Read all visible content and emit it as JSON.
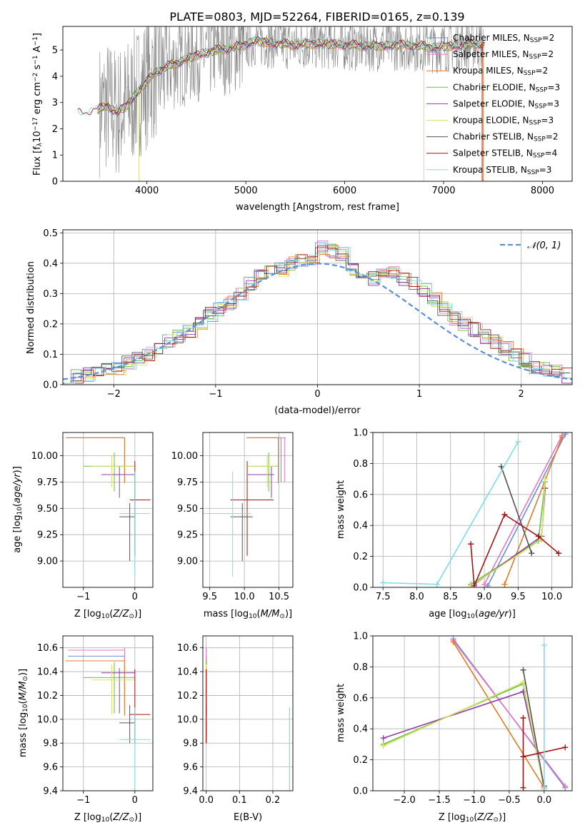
{
  "title": "PLATE=0803, MJD=52264, FIBERID=0165, z=0.139",
  "colors": {
    "Chabrier MILES": "#6a8fd6",
    "Salpeter MILES": "#e377c2",
    "Kroupa MILES": "#e07b2a",
    "Chabrier ELODIE": "#6bbf3f",
    "Salpeter ELODIE": "#8e3fa8",
    "Kroupa ELODIE": "#d8e06a",
    "Chabrier STELIB": "#555555",
    "Salpeter STELIB": "#a31515",
    "Kroupa STELIB": "#7ddde3",
    "data": "#888888",
    "normal": "#5b8fd6"
  },
  "chart_data": [
    {
      "type": "line",
      "panel": "spectrum",
      "title": "PLATE=0803, MJD=52264, FIBERID=0165, z=0.139",
      "xlabel": "wavelength [Angstrom, rest frame]",
      "ylabel_main": "Flux [f",
      "ylabel_sub": "λ",
      "ylabel_rest": "10",
      "ylabel_exp": "−17",
      "ylabel_units": " erg cm",
      "ylabel_units_exp": "−2",
      "ylabel_units2": " s",
      "ylabel_units2_exp": "−1",
      "ylabel_units3": " A",
      "ylabel_units3_exp": "−1",
      "ylabel_close": "]",
      "xlim": [
        3150,
        8300
      ],
      "ylim": [
        0,
        5.9
      ],
      "xticks": [
        "4000",
        "5000",
        "6000",
        "7000",
        "8000"
      ],
      "yticks": [
        "0",
        "1",
        "2",
        "3",
        "4",
        "5"
      ],
      "legend_position": "top-right",
      "legend": [
        {
          "label": "Chabrier MILES, N",
          "sub": "SSP",
          "tail": "=2"
        },
        {
          "label": "Salpeter MILES, N",
          "sub": "SSP",
          "tail": "=2"
        },
        {
          "label": "Kroupa MILES, N",
          "sub": "SSP",
          "tail": "=2"
        },
        {
          "label": "Chabrier ELODIE, N",
          "sub": "SSP",
          "tail": "=3"
        },
        {
          "label": "Salpeter ELODIE, N",
          "sub": "SSP",
          "tail": "=3"
        },
        {
          "label": "Kroupa ELODIE, N",
          "sub": "SSP",
          "tail": "=3"
        },
        {
          "label": "Chabrier STELIB, N",
          "sub": "SSP",
          "tail": "=2"
        },
        {
          "label": "Salpeter STELIB, N",
          "sub": "SSP",
          "tail": "=4"
        },
        {
          "label": "Kroupa STELIB, N",
          "sub": "SSP",
          "tail": "=3"
        }
      ],
      "continuum": [
        [
          3300,
          2.6
        ],
        [
          3500,
          2.7
        ],
        [
          3600,
          2.9
        ],
        [
          3700,
          2.6
        ],
        [
          3800,
          2.9
        ],
        [
          3950,
          3.6
        ],
        [
          4100,
          4.2
        ],
        [
          4300,
          4.5
        ],
        [
          4500,
          4.8
        ],
        [
          4700,
          5.0
        ],
        [
          4900,
          5.1
        ],
        [
          5100,
          5.35
        ],
        [
          5300,
          5.25
        ],
        [
          5500,
          5.2
        ],
        [
          5700,
          5.25
        ],
        [
          6000,
          5.2
        ],
        [
          6300,
          5.15
        ],
        [
          6600,
          5.2
        ],
        [
          6900,
          5.1
        ],
        [
          7200,
          5.2
        ],
        [
          7400,
          5.25
        ]
      ]
    },
    {
      "type": "histogram",
      "panel": "residuals",
      "xlabel": "(data-model)/error",
      "ylabel": "Normed distribution",
      "xlim": [
        -2.5,
        2.5
      ],
      "ylim": [
        0,
        0.51
      ],
      "xticks": [
        "−2",
        "−1",
        "0",
        "1",
        "2"
      ],
      "yticks": [
        "0.0",
        "0.1",
        "0.2",
        "0.3",
        "0.4",
        "0.5"
      ],
      "legend": "𝒩(0, 1)",
      "legend_position": "top-right",
      "bin_width": 0.1,
      "bin_start": -2.5,
      "base": [
        0.02,
        0.025,
        0.03,
        0.035,
        0.045,
        0.055,
        0.07,
        0.085,
        0.1,
        0.12,
        0.14,
        0.16,
        0.18,
        0.2,
        0.23,
        0.25,
        0.27,
        0.3,
        0.33,
        0.36,
        0.37,
        0.38,
        0.4,
        0.41,
        0.42,
        0.45,
        0.44,
        0.43,
        0.38,
        0.37,
        0.35,
        0.36,
        0.37,
        0.35,
        0.33,
        0.31,
        0.28,
        0.25,
        0.22,
        0.2,
        0.18,
        0.16,
        0.14,
        0.12,
        0.1,
        0.08,
        0.06,
        0.05,
        0.04,
        0.03
      ]
    },
    {
      "type": "scatter",
      "panel": "age_vs_Z",
      "xlabel": "Z [log",
      "xlabel_sub": "10",
      "xlabel_tail": "(Z/Z",
      "xlabel_sun": "⊙",
      "xlabel_close": ")]",
      "ylabel": "age  [log",
      "ylabel_sub": "10",
      "ylabel_tail": "(age/yr)]",
      "xlim": [
        -1.4,
        0.35
      ],
      "ylim": [
        8.75,
        10.22
      ],
      "xticks": [
        "−1",
        "0"
      ],
      "yticks": [
        "9.00",
        "9.25",
        "9.50",
        "9.75",
        "10.00"
      ]
    },
    {
      "type": "scatter",
      "panel": "age_vs_mass",
      "xlabel": "mass [log",
      "xlabel_sub": "10",
      "xlabel_tail": "(M/M",
      "xlabel_sun": "⊙",
      "xlabel_close": ")]",
      "xlim": [
        9.4,
        10.7
      ],
      "ylim": [
        8.75,
        10.22
      ],
      "xticks": [
        "9.5",
        "10.0",
        "10.5"
      ],
      "yticks": [
        "9.00",
        "9.25",
        "9.50",
        "9.75",
        "10.00"
      ]
    },
    {
      "type": "line",
      "panel": "massweight_vs_age",
      "xlabel": "age  [log",
      "xlabel_sub": "10",
      "xlabel_tail": "(age/yr)]",
      "ylabel": "mass weight",
      "xlim": [
        7.35,
        10.3
      ],
      "ylim": [
        0,
        1
      ],
      "xticks": [
        "7.5",
        "8.0",
        "8.5",
        "9.0",
        "9.5",
        "10.0"
      ],
      "yticks": [
        "0.0",
        "0.2",
        "0.4",
        "0.6",
        "0.8",
        "1.0"
      ],
      "series": [
        {
          "name": "Chabrier MILES",
          "points": [
            [
              9.05,
              0.01
            ],
            [
              10.2,
              0.99
            ]
          ]
        },
        {
          "name": "Salpeter MILES",
          "points": [
            [
              9.0,
              0.02
            ],
            [
              10.15,
              0.98
            ]
          ]
        },
        {
          "name": "Kroupa MILES",
          "points": [
            [
              9.3,
              0.02
            ],
            [
              10.15,
              0.97
            ]
          ]
        },
        {
          "name": "Chabrier ELODIE",
          "points": [
            [
              8.8,
              0.02
            ],
            [
              9.8,
              0.3
            ],
            [
              9.9,
              0.68
            ]
          ]
        },
        {
          "name": "Salpeter ELODIE",
          "points": [
            [
              8.85,
              0.02
            ],
            [
              9.85,
              0.33
            ],
            [
              9.9,
              0.64
            ]
          ]
        },
        {
          "name": "Kroupa ELODIE",
          "points": [
            [
              8.8,
              0.01
            ],
            [
              9.85,
              0.31
            ],
            [
              9.9,
              0.7
            ]
          ]
        },
        {
          "name": "Chabrier STELIB",
          "points": [
            [
              9.25,
              0.78
            ],
            [
              9.7,
              0.22
            ]
          ]
        },
        {
          "name": "Salpeter STELIB",
          "points": [
            [
              8.8,
              0.28
            ],
            [
              8.85,
              0.01
            ],
            [
              9.3,
              0.47
            ],
            [
              9.8,
              0.33
            ],
            [
              10.1,
              0.22
            ]
          ]
        },
        {
          "name": "Kroupa STELIB",
          "points": [
            [
              7.5,
              0.03
            ],
            [
              8.3,
              0.02
            ],
            [
              9.5,
              0.94
            ]
          ]
        }
      ]
    },
    {
      "type": "scatter",
      "panel": "mass_vs_Z",
      "xlabel": "Z [log",
      "xlabel_sub": "10",
      "xlabel_tail": "(Z/Z",
      "xlabel_sun": "⊙",
      "xlabel_close": ")]",
      "ylabel": "mass [log",
      "ylabel_sub": "10",
      "ylabel_tail": "(M/M",
      "ylabel_sun": "⊙",
      "ylabel_close": ")]",
      "xlim": [
        -1.4,
        0.35
      ],
      "ylim": [
        9.4,
        10.7
      ],
      "xticks": [
        "−1",
        "0"
      ],
      "yticks": [
        "9.4",
        "9.6",
        "9.8",
        "10.0",
        "10.2",
        "10.4",
        "10.6"
      ]
    },
    {
      "type": "scatter",
      "panel": "mass_vs_EBV",
      "xlabel": "E(B-V)",
      "xlim": [
        -0.01,
        0.26
      ],
      "ylim": [
        9.4,
        10.7
      ],
      "xticks": [
        "0.0",
        "0.1",
        "0.2"
      ],
      "yticks": [
        "9.4",
        "9.6",
        "9.8",
        "10.0",
        "10.2",
        "10.4",
        "10.6"
      ]
    },
    {
      "type": "line",
      "panel": "massweight_vs_Z",
      "xlabel": "Z [log",
      "xlabel_sub": "10",
      "xlabel_tail": "(Z/Z",
      "xlabel_sun": "⊙",
      "xlabel_close": ")]",
      "ylabel": "mass weight",
      "xlim": [
        -2.45,
        0.4
      ],
      "ylim": [
        0,
        1
      ],
      "xticks": [
        "−2.0",
        "−1.5",
        "−1.0",
        "−0.5",
        "0.0"
      ],
      "yticks": [
        "0.0",
        "0.2",
        "0.4",
        "0.6",
        "0.8",
        "1.0"
      ],
      "series": [
        {
          "name": "Chabrier MILES",
          "points": [
            [
              -1.3,
              0.98
            ],
            [
              0.3,
              0.02
            ]
          ]
        },
        {
          "name": "Salpeter MILES",
          "points": [
            [
              -1.3,
              0.97
            ],
            [
              0.3,
              0.03
            ]
          ]
        },
        {
          "name": "Kroupa MILES",
          "points": [
            [
              -1.3,
              0.96
            ],
            [
              0.0,
              0.02
            ]
          ]
        },
        {
          "name": "Chabrier ELODIE",
          "points": [
            [
              -2.3,
              0.3
            ],
            [
              -0.3,
              0.69
            ],
            [
              0.0,
              0.02
            ]
          ]
        },
        {
          "name": "Salpeter ELODIE",
          "points": [
            [
              -2.3,
              0.34
            ],
            [
              -0.3,
              0.64
            ],
            [
              0.0,
              0.03
            ]
          ]
        },
        {
          "name": "Kroupa ELODIE",
          "points": [
            [
              -2.3,
              0.29
            ],
            [
              -0.3,
              0.7
            ],
            [
              0.0,
              0.01
            ]
          ]
        },
        {
          "name": "Chabrier STELIB",
          "points": [
            [
              -0.3,
              0.78
            ],
            [
              0.0,
              0.02
            ]
          ]
        },
        {
          "name": "Salpeter STELIB",
          "points": [
            [
              -0.3,
              0.47
            ],
            [
              -0.3,
              0.02
            ],
            [
              -0.3,
              0.22
            ],
            [
              0.3,
              0.28
            ]
          ]
        },
        {
          "name": "Kroupa STELIB",
          "points": [
            [
              0.0,
              0.94
            ],
            [
              0.0,
              0.02
            ]
          ]
        }
      ]
    }
  ],
  "props": [
    {
      "name": "Chabrier MILES",
      "Z": [
        -0.2,
        -1.3,
        -0.2
      ],
      "age": [
        10.17,
        9.75,
        10.17
      ],
      "mass": [
        10.53,
        10.04,
        10.53
      ],
      "ebv": 0.0
    },
    {
      "name": "Salpeter MILES",
      "Z": [
        -0.2,
        -1.3,
        -0.2
      ],
      "age": [
        10.17,
        9.75,
        10.17
      ],
      "mass": [
        10.58,
        10.09,
        10.6
      ],
      "ebv": 0.0
    },
    {
      "name": "Kroupa MILES",
      "Z": [
        -0.2,
        -1.35,
        -0.2
      ],
      "age": [
        10.17,
        9.74,
        10.17
      ],
      "mass": [
        10.49,
        10.03,
        10.49
      ],
      "ebv": 0.0
    },
    {
      "name": "Chabrier ELODIE",
      "Z": [
        -0.4,
        -1.0,
        0.0
      ],
      "age": [
        9.9,
        9.66,
        10.03
      ],
      "mass": [
        10.35,
        10.05,
        10.48
      ],
      "ebv": 0.0
    },
    {
      "name": "Salpeter ELODIE",
      "Z": [
        -0.3,
        -0.65,
        0.0
      ],
      "age": [
        9.82,
        9.6,
        9.9
      ],
      "mass": [
        10.39,
        10.05,
        10.43
      ],
      "ebv": 0.0
    },
    {
      "name": "Kroupa ELODIE",
      "Z": [
        -0.45,
        -0.85,
        0.0
      ],
      "age": [
        9.9,
        9.7,
        10.0
      ],
      "mass": [
        10.33,
        10.04,
        10.46
      ],
      "ebv": 0.0
    },
    {
      "name": "Chabrier STELIB",
      "Z": [
        -0.1,
        -0.3,
        0.0
      ],
      "age": [
        9.42,
        9.0,
        9.55
      ],
      "mass": [
        9.97,
        9.8,
        10.12
      ],
      "ebv": 0.0
    },
    {
      "name": "Salpeter STELIB",
      "Z": [
        0.0,
        -0.1,
        0.3
      ],
      "age": [
        9.58,
        9.05,
        9.95
      ],
      "mass": [
        10.04,
        9.8,
        10.42
      ],
      "ebv": 0.0
    },
    {
      "name": "Kroupa STELIB",
      "Z": [
        0.0,
        -0.3,
        0.3
      ],
      "age": [
        9.45,
        8.85,
        9.85
      ],
      "mass": [
        9.83,
        9.4,
        10.1
      ],
      "ebv": 0.25
    }
  ]
}
